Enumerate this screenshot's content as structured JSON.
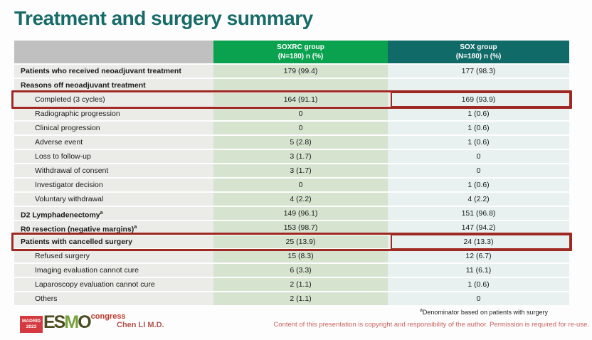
{
  "title": "Treatment and surgery summary",
  "colors": {
    "title_teal": "#176b68",
    "header_green": "#0aa24e",
    "header_teal": "#106b68",
    "highlight_red": "#9e2822",
    "soxrc_cell_green": "#d6e3cf",
    "sox_cell_teal": "#e8f1ef"
  },
  "chart_data": {
    "type": "table",
    "columns": [
      "",
      "SOXRC group (N=180) n (%)",
      "SOX group (N=180) n (%)"
    ],
    "rows_flat": [
      [
        "Patients who received neoadjuvant treatment",
        "179 (99.4)",
        "177 (98.3)"
      ],
      [
        "Reasons off neoadjuvant treatment",
        "",
        ""
      ],
      [
        "Completed (3 cycles)",
        "164 (91.1)",
        "169 (93.9)"
      ],
      [
        "Radiographic progression",
        "0",
        "1 (0.6)"
      ],
      [
        "Clinical progression",
        "0",
        "1 (0.6)"
      ],
      [
        "Adverse event",
        "5 (2.8)",
        "1 (0.6)"
      ],
      [
        "Loss to follow-up",
        "3 (1.7)",
        "0"
      ],
      [
        "Withdrawal of consent",
        "3 (1.7)",
        "0"
      ],
      [
        "Investigator decision",
        "0",
        "1 (0.6)"
      ],
      [
        "Voluntary withdrawal",
        "4 (2.2)",
        "4 (2.2)"
      ],
      [
        "D2 Lymphadenectomy(a)",
        "149 (96.1)",
        "151 (96.8)"
      ],
      [
        "R0 resection (negative margins)(a)",
        "153 (98.7)",
        "147 (94.2)"
      ],
      [
        "Patients with cancelled surgery",
        "25 (13.9)",
        "24 (13.3)"
      ],
      [
        "Refused surgery",
        "15 (8.3)",
        "12 (6.7)"
      ],
      [
        "Imaging evaluation cannot cure",
        "6 (3.3)",
        "11 (6.1)"
      ],
      [
        "Laparoscopy evaluation cannot cure",
        "2 (1.1)",
        "1 (0.6)"
      ],
      [
        "Others",
        "2 (1.1)",
        "0"
      ]
    ]
  },
  "table": {
    "header": {
      "soxrc_line1": "SOXRC group",
      "soxrc_line2": "(N=180)  n (%)",
      "sox_line1": "SOX group",
      "sox_line2": "(N=180)  n (%)"
    },
    "rows": [
      {
        "label": "Patients who received neoadjuvant treatment",
        "bold": true,
        "indent": false,
        "soxrc": "179 (99.4)",
        "sox": "177 (98.3)",
        "highlight": false
      },
      {
        "label": "Reasons off neoadjuvant treatment",
        "bold": true,
        "indent": false,
        "soxrc": "",
        "sox": "",
        "highlight": false
      },
      {
        "label": "Completed (3 cycles)",
        "bold": false,
        "indent": true,
        "soxrc": "164 (91.1)",
        "sox": "169 (93.9)",
        "highlight": true
      },
      {
        "label": "Radiographic progression",
        "bold": false,
        "indent": true,
        "soxrc": "0",
        "sox": "1 (0.6)",
        "highlight": false
      },
      {
        "label": "Clinical progression",
        "bold": false,
        "indent": true,
        "soxrc": "0",
        "sox": "1 (0.6)",
        "highlight": false
      },
      {
        "label": "Adverse event",
        "bold": false,
        "indent": true,
        "soxrc": "5 (2.8)",
        "sox": "1 (0.6)",
        "highlight": false
      },
      {
        "label": "Loss to follow-up",
        "bold": false,
        "indent": true,
        "soxrc": "3 (1.7)",
        "sox": "0",
        "highlight": false
      },
      {
        "label": "Withdrawal of consent",
        "bold": false,
        "indent": true,
        "soxrc": "3 (1.7)",
        "sox": "0",
        "highlight": false
      },
      {
        "label": "Investigator decision",
        "bold": false,
        "indent": true,
        "soxrc": "0",
        "sox": "1 (0.6)",
        "highlight": false
      },
      {
        "label": "Voluntary withdrawal",
        "bold": false,
        "indent": true,
        "soxrc": "4 (2.2)",
        "sox": "4 (2.2)",
        "highlight": false
      },
      {
        "label": "D2 Lymphadenectomy",
        "sup": "a",
        "bold": true,
        "indent": false,
        "soxrc": "149 (96.1)",
        "sox": "151 (96.8)",
        "highlight": false
      },
      {
        "label": "R0 resection (negative margins)",
        "sup": "a",
        "bold": true,
        "indent": false,
        "soxrc": "153 (98.7)",
        "sox": "147 (94.2)",
        "highlight": false
      },
      {
        "label": "Patients with cancelled surgery",
        "bold": true,
        "indent": false,
        "soxrc": "25 (13.9)",
        "sox": "24 (13.3)",
        "highlight": true
      },
      {
        "label": "Refused surgery",
        "bold": false,
        "indent": true,
        "soxrc": "15 (8.3)",
        "sox": "12 (6.7)",
        "highlight": false
      },
      {
        "label": "Imaging evaluation cannot cure",
        "bold": false,
        "indent": true,
        "soxrc": "6 (3.3)",
        "sox": "11 (6.1)",
        "highlight": false
      },
      {
        "label": "Laparoscopy evaluation cannot cure",
        "bold": false,
        "indent": true,
        "soxrc": "2 (1.1)",
        "sox": "1 (0.6)",
        "highlight": false
      },
      {
        "label": "Others",
        "bold": false,
        "indent": true,
        "soxrc": "2 (1.1)",
        "sox": "0",
        "highlight": false
      }
    ]
  },
  "footer": {
    "footnote_sup": "a",
    "footnote": "Denominator based on patients with surgery",
    "copyright": "Content of this presentation is copyright and responsibility of the author.  Permission is required for re-use.",
    "author": "Chen LI M.D.",
    "logo": {
      "madrid": "MADRID",
      "year": "2023",
      "esmo_es": "ES",
      "esmo_m": "M",
      "esmo_o": "O",
      "congress": "congress"
    }
  }
}
